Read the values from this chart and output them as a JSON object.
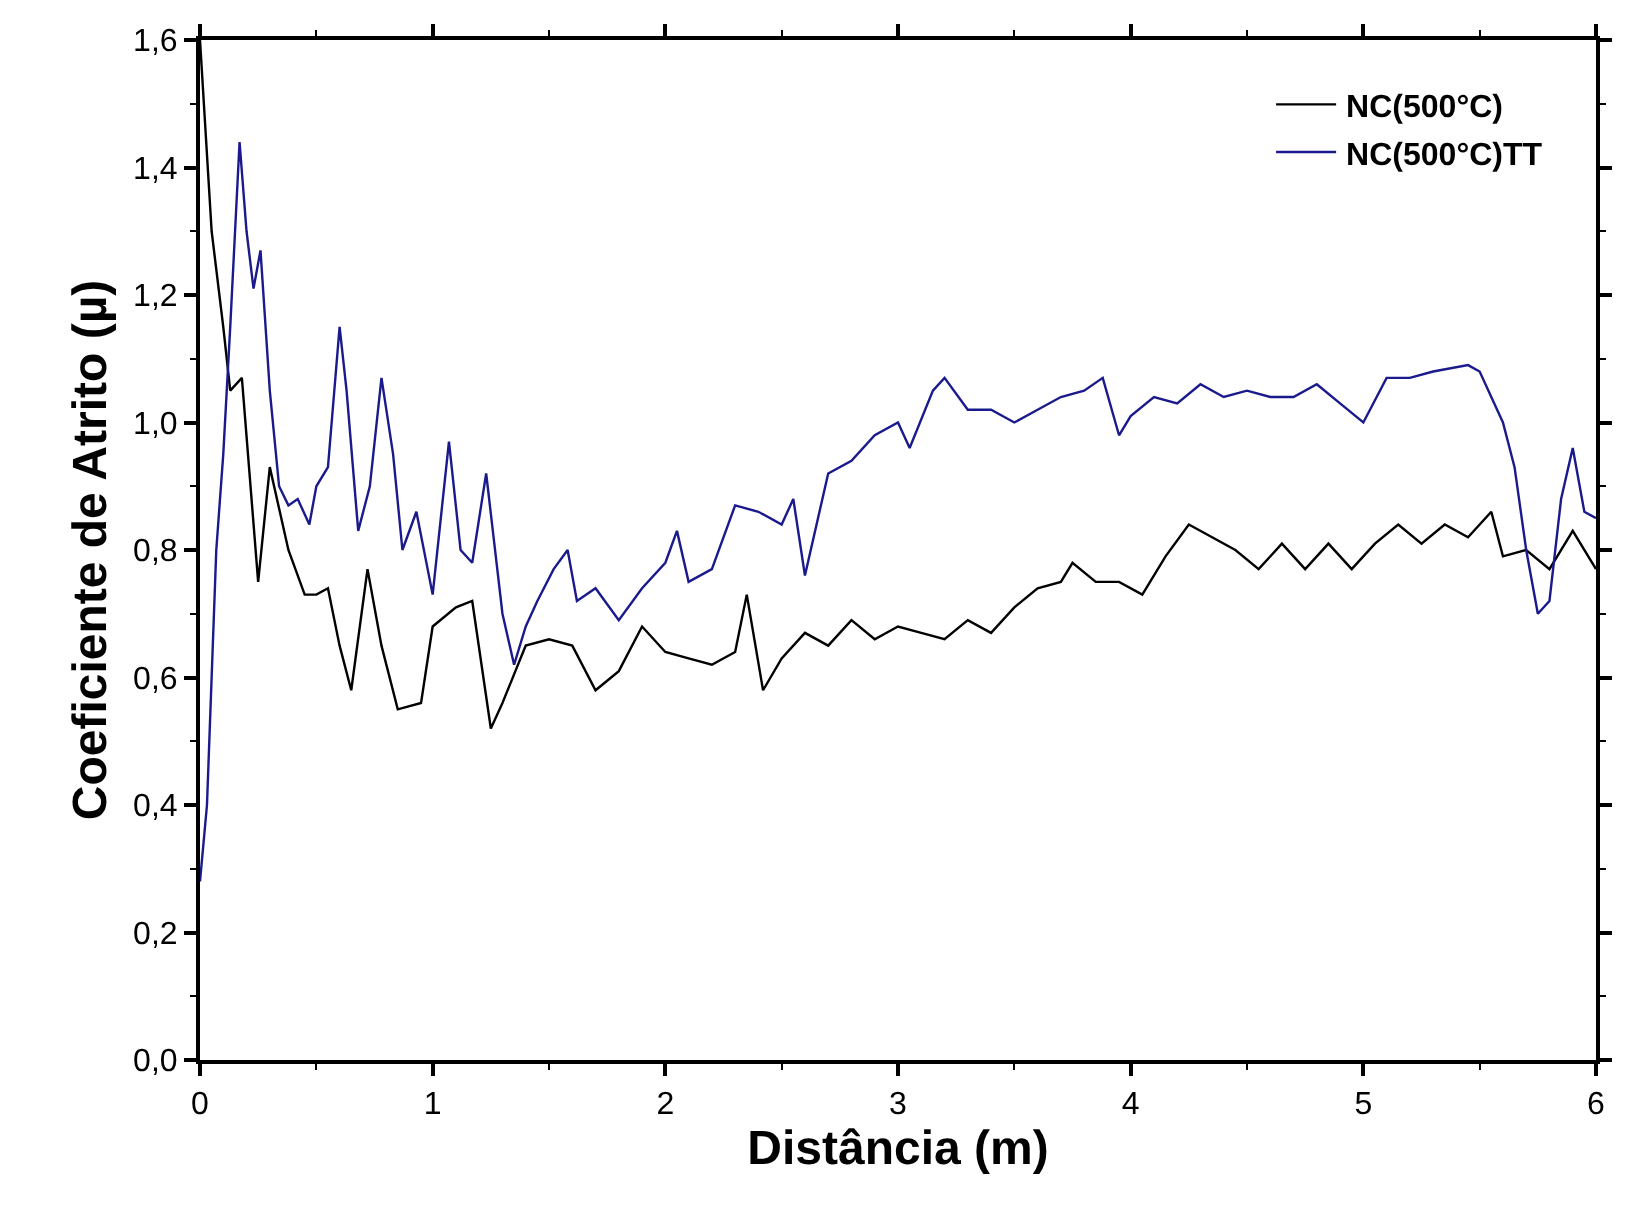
{
  "chart_data": {
    "type": "line",
    "xlabel": "Distância (m)",
    "ylabel": "Coeficiente de Atrito (µ)",
    "xlim": [
      0,
      6
    ],
    "xticks": [
      0,
      1,
      2,
      3,
      4,
      5,
      6
    ],
    "ylim": [
      0,
      1.6
    ],
    "yticks": [
      {
        "value": 0,
        "label": "0,0"
      },
      {
        "value": 0.2,
        "label": "0,2"
      },
      {
        "value": 0.4,
        "label": "0,4"
      },
      {
        "value": 0.6,
        "label": "0,6"
      },
      {
        "value": 0.8,
        "label": "0,8"
      },
      {
        "value": 1.0,
        "label": "1,0"
      },
      {
        "value": 1.2,
        "label": "1,2"
      },
      {
        "value": 1.4,
        "label": "1,4"
      },
      {
        "value": 1.6,
        "label": "1,6"
      }
    ],
    "legend": "top right",
    "marker": "none",
    "line_style": "solid",
    "series": [
      {
        "name": "NC(500°C)",
        "color": "#000000",
        "x": [
          0,
          0.05,
          0.1,
          0.13,
          0.18,
          0.25,
          0.3,
          0.38,
          0.45,
          0.5,
          0.55,
          0.6,
          0.65,
          0.72,
          0.78,
          0.85,
          0.95,
          1.0,
          1.1,
          1.17,
          1.25,
          1.3,
          1.4,
          1.5,
          1.6,
          1.7,
          1.8,
          1.9,
          2.0,
          2.1,
          2.2,
          2.3,
          2.35,
          2.42,
          2.5,
          2.6,
          2.7,
          2.8,
          2.9,
          3.0,
          3.1,
          3.2,
          3.3,
          3.4,
          3.5,
          3.6,
          3.7,
          3.75,
          3.85,
          3.95,
          4.05,
          4.15,
          4.25,
          4.35,
          4.45,
          4.55,
          4.65,
          4.75,
          4.85,
          4.95,
          5.05,
          5.15,
          5.25,
          5.35,
          5.45,
          5.55,
          5.6,
          5.7,
          5.8,
          5.9,
          6.0
        ],
        "values": [
          1.6,
          1.3,
          1.15,
          1.05,
          1.07,
          0.75,
          0.93,
          0.8,
          0.73,
          0.73,
          0.74,
          0.65,
          0.58,
          0.77,
          0.65,
          0.55,
          0.56,
          0.68,
          0.71,
          0.72,
          0.52,
          0.56,
          0.65,
          0.66,
          0.65,
          0.58,
          0.61,
          0.68,
          0.64,
          0.63,
          0.62,
          0.64,
          0.73,
          0.58,
          0.63,
          0.67,
          0.65,
          0.69,
          0.66,
          0.68,
          0.67,
          0.66,
          0.69,
          0.67,
          0.71,
          0.74,
          0.75,
          0.78,
          0.75,
          0.75,
          0.73,
          0.79,
          0.84,
          0.82,
          0.8,
          0.77,
          0.81,
          0.77,
          0.81,
          0.77,
          0.81,
          0.84,
          0.81,
          0.84,
          0.82,
          0.86,
          0.79,
          0.8,
          0.77,
          0.83,
          0.77
        ]
      },
      {
        "name": "NC(500°C)TT",
        "color": "#1a1a8c",
        "x": [
          0,
          0.03,
          0.07,
          0.1,
          0.13,
          0.17,
          0.2,
          0.23,
          0.26,
          0.3,
          0.34,
          0.38,
          0.42,
          0.47,
          0.5,
          0.55,
          0.6,
          0.63,
          0.68,
          0.73,
          0.78,
          0.83,
          0.87,
          0.93,
          1.0,
          1.07,
          1.12,
          1.17,
          1.23,
          1.3,
          1.35,
          1.4,
          1.45,
          1.52,
          1.58,
          1.62,
          1.7,
          1.8,
          1.9,
          2.0,
          2.05,
          2.1,
          2.2,
          2.3,
          2.4,
          2.5,
          2.55,
          2.6,
          2.7,
          2.8,
          2.9,
          3.0,
          3.05,
          3.15,
          3.2,
          3.3,
          3.4,
          3.5,
          3.6,
          3.7,
          3.8,
          3.88,
          3.95,
          4.0,
          4.1,
          4.2,
          4.3,
          4.4,
          4.5,
          4.6,
          4.7,
          4.8,
          4.9,
          5.0,
          5.1,
          5.2,
          5.3,
          5.45,
          5.5,
          5.6,
          5.65,
          5.7,
          5.75,
          5.8,
          5.85,
          5.9,
          5.95,
          6.0
        ],
        "values": [
          0.28,
          0.4,
          0.8,
          0.95,
          1.15,
          1.44,
          1.3,
          1.21,
          1.27,
          1.05,
          0.9,
          0.87,
          0.88,
          0.84,
          0.9,
          0.93,
          1.15,
          1.05,
          0.83,
          0.9,
          1.07,
          0.95,
          0.8,
          0.86,
          0.73,
          0.97,
          0.8,
          0.78,
          0.92,
          0.7,
          0.62,
          0.68,
          0.72,
          0.77,
          0.8,
          0.72,
          0.74,
          0.69,
          0.74,
          0.78,
          0.83,
          0.75,
          0.77,
          0.87,
          0.86,
          0.84,
          0.88,
          0.76,
          0.92,
          0.94,
          0.98,
          1.0,
          0.96,
          1.05,
          1.07,
          1.02,
          1.02,
          1.0,
          1.02,
          1.04,
          1.05,
          1.07,
          0.98,
          1.01,
          1.04,
          1.03,
          1.06,
          1.04,
          1.05,
          1.04,
          1.04,
          1.06,
          1.03,
          1.0,
          1.07,
          1.07,
          1.08,
          1.09,
          1.08,
          1.0,
          0.93,
          0.8,
          0.7,
          0.72,
          0.88,
          0.96,
          0.86,
          0.85
        ]
      }
    ]
  }
}
